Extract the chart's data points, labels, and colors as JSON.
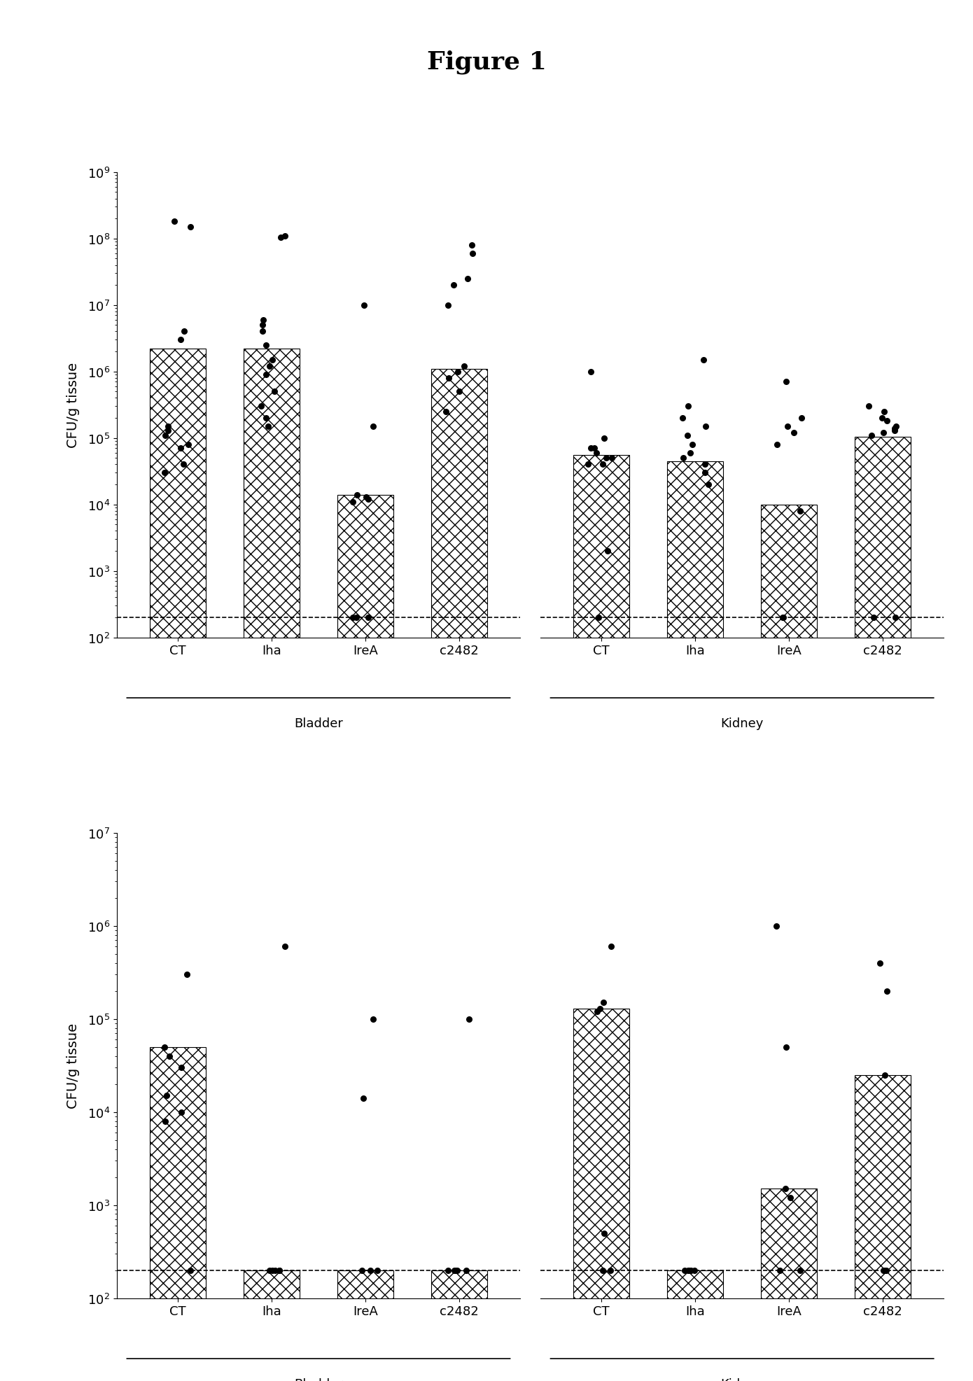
{
  "title": "Figure 1",
  "panel1": {
    "ylabel": "CFU/g tissue",
    "ylim_log": [
      2,
      9
    ],
    "yticks": [
      2,
      3,
      4,
      5,
      6,
      7,
      8,
      9
    ],
    "dashed_line": 200,
    "groups": [
      "CT",
      "Iha",
      "IreA",
      "c2482"
    ],
    "bladder_bars": [
      2200000,
      2200000,
      14000,
      1100000
    ],
    "kidney_bars": [
      55000,
      45000,
      10000,
      105000
    ],
    "bladder_dots": [
      [
        180000000.0,
        150000000.0,
        4000000.0,
        3000000.0,
        150000.0,
        130000.0,
        110000.0,
        80000.0,
        70000.0,
        40000.0,
        30000.0
      ],
      [
        110000000.0,
        105000000.0,
        6000000.0,
        5000000.0,
        4000000.0,
        2500000.0,
        1500000.0,
        1200000.0,
        900000.0,
        500000.0,
        300000.0,
        200000.0,
        150000.0
      ],
      [
        10000000.0,
        150000.0,
        14000.0,
        13000.0,
        12000.0,
        11000.0,
        200,
        200,
        200
      ],
      [
        80000000.0,
        60000000.0,
        25000000.0,
        20000000.0,
        10000000.0,
        1200000.0,
        1000000.0,
        800000.0,
        500000.0,
        250000.0
      ]
    ],
    "kidney_dots": [
      [
        1000000.0,
        100000.0,
        70000.0,
        70000.0,
        60000.0,
        50000.0,
        50000.0,
        40000.0,
        40000.0,
        2000.0,
        200
      ],
      [
        1500000.0,
        300000.0,
        200000.0,
        150000.0,
        110000.0,
        80000.0,
        60000.0,
        50000.0,
        40000.0,
        30000.0,
        20000.0
      ],
      [
        700000.0,
        200000.0,
        150000.0,
        120000.0,
        80000.0,
        8000,
        200,
        200
      ],
      [
        300000.0,
        250000.0,
        200000.0,
        180000.0,
        150000.0,
        140000.0,
        130000.0,
        120000.0,
        110000.0,
        200,
        200
      ]
    ]
  },
  "panel2": {
    "ylabel": "CFU/g tissue",
    "ylim_log": [
      2,
      7
    ],
    "yticks": [
      2,
      3,
      4,
      5,
      6,
      7
    ],
    "dashed_line": 200,
    "groups": [
      "CT",
      "Iha",
      "IreA",
      "c2482"
    ],
    "bladder_bars": [
      50000,
      200,
      200,
      200
    ],
    "kidney_bars": [
      130000,
      200,
      1500,
      25000
    ],
    "bladder_dots": [
      [
        300000.0,
        50000.0,
        40000.0,
        30000.0,
        15000.0,
        10000.0,
        8000,
        200
      ],
      [
        600000.0,
        200,
        200,
        200,
        200,
        200
      ],
      [
        100000.0,
        14000.0,
        200,
        200,
        200
      ],
      [
        100000.0,
        200,
        200,
        200,
        200,
        200
      ]
    ],
    "kidney_dots": [
      [
        600000.0,
        150000.0,
        130000.0,
        120000.0,
        500,
        200,
        200
      ],
      [
        200,
        200,
        200,
        200,
        200
      ],
      [
        1000000.0,
        50000.0,
        1500.0,
        1200.0,
        200,
        200
      ],
      [
        400000.0,
        200000.0,
        25000.0,
        200,
        200,
        200
      ]
    ]
  }
}
